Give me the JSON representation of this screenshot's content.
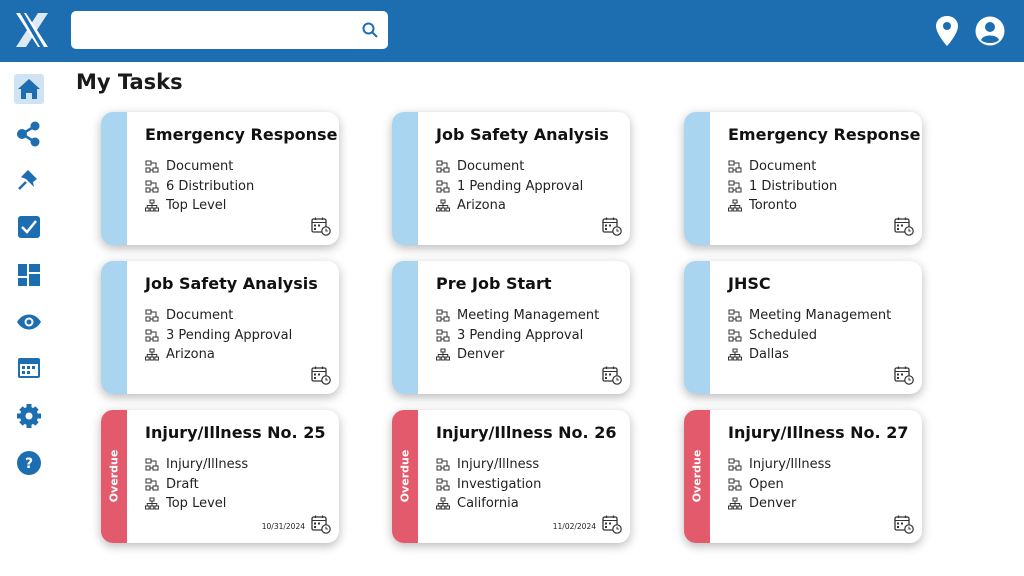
{
  "header": {
    "title": "My Tasks"
  },
  "cards": [
    {
      "title": "Emergency Response",
      "lines": [
        "Document",
        "6 Distribution",
        "Top Level"
      ]
    },
    {
      "title": "Job Safety Analysis",
      "lines": [
        "Document",
        "1 Pending Approval",
        "Arizona"
      ]
    },
    {
      "title": "Emergency Response",
      "lines": [
        "Document",
        "1 Distribution",
        "Toronto"
      ]
    },
    {
      "title": "Job Safety Analysis",
      "lines": [
        "Document",
        "3 Pending Approval",
        "Arizona"
      ]
    },
    {
      "title": "Pre Job Start",
      "lines": [
        "Meeting Management",
        "3 Pending Approval",
        "Denver"
      ]
    },
    {
      "title": "JHSC",
      "lines": [
        "Meeting Management",
        "Scheduled",
        "Dallas"
      ]
    },
    {
      "title": "Injury/Illness No. 25",
      "lines": [
        "Injury/Illness",
        "Draft",
        "Top Level"
      ],
      "status": "Overdue",
      "date": "10/31/2024"
    },
    {
      "title": "Injury/Illness No. 26",
      "lines": [
        "Injury/Illness",
        "Investigation",
        "California"
      ],
      "status": "Overdue",
      "date": "11/02/2024"
    },
    {
      "title": "Injury/Illness No. 27",
      "lines": [
        "Injury/Illness",
        "Open",
        "Denver"
      ],
      "status": "Overdue"
    }
  ]
}
